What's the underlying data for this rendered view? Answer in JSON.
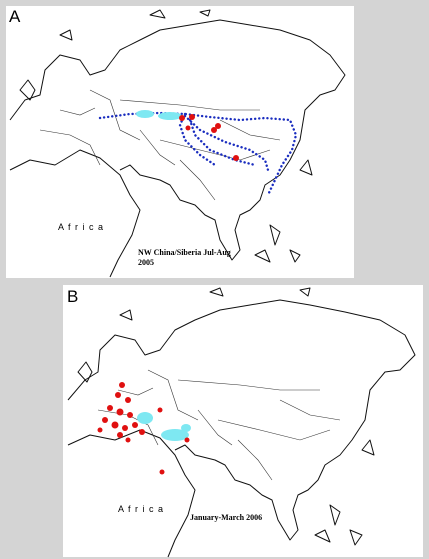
{
  "panel_a": {
    "label": "A",
    "continent_label": "A f r i c a",
    "caption": [
      "NW China/Siberia Jul-Aug",
      "2005"
    ]
  },
  "panel_b": {
    "label": "B",
    "continent_label": "A f r i c a",
    "caption": [
      "January-March 2006"
    ]
  }
}
